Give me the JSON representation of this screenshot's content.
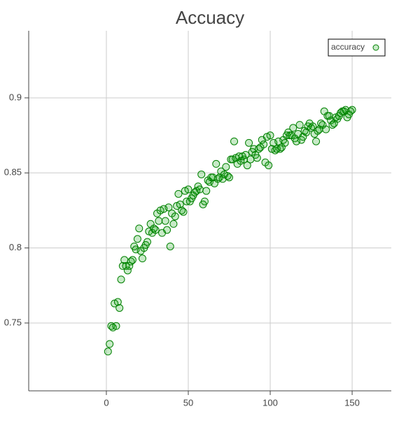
{
  "chart_data": {
    "type": "scatter",
    "title": "Accuacy",
    "x": [
      1,
      2,
      3,
      4,
      5,
      6,
      7,
      8,
      9,
      10,
      11,
      12,
      13,
      14,
      15,
      16,
      17,
      18,
      19,
      20,
      21,
      22,
      23,
      24,
      25,
      26,
      27,
      28,
      29,
      30,
      31,
      32,
      33,
      34,
      35,
      36,
      37,
      38,
      39,
      40,
      41,
      42,
      43,
      44,
      45,
      46,
      47,
      48,
      49,
      50,
      51,
      52,
      53,
      54,
      55,
      56,
      57,
      58,
      59,
      60,
      61,
      62,
      63,
      64,
      65,
      66,
      67,
      68,
      69,
      70,
      71,
      72,
      73,
      74,
      75,
      76,
      77,
      78,
      79,
      80,
      81,
      82,
      83,
      84,
      85,
      86,
      87,
      88,
      89,
      90,
      91,
      92,
      93,
      94,
      95,
      96,
      97,
      98,
      99,
      100,
      101,
      102,
      103,
      104,
      105,
      106,
      107,
      108,
      109,
      110,
      111,
      112,
      113,
      114,
      115,
      116,
      117,
      118,
      119,
      120,
      121,
      122,
      123,
      124,
      125,
      126,
      127,
      128,
      129,
      130,
      131,
      132,
      133,
      134,
      135,
      136,
      137,
      138,
      139,
      140,
      141,
      142,
      143,
      144,
      145,
      146,
      147,
      148,
      149,
      150
    ],
    "series": [
      {
        "name": "accuracy",
        "color": "#008000",
        "fill": "rgba(0,160,0,0.22)",
        "values": [
          0.731,
          0.736,
          0.748,
          0.747,
          0.763,
          0.748,
          0.764,
          0.76,
          0.779,
          0.788,
          0.792,
          0.788,
          0.785,
          0.788,
          0.791,
          0.792,
          0.801,
          0.799,
          0.806,
          0.813,
          0.798,
          0.793,
          0.8,
          0.802,
          0.804,
          0.811,
          0.816,
          0.81,
          0.813,
          0.812,
          0.823,
          0.818,
          0.825,
          0.81,
          0.826,
          0.818,
          0.812,
          0.827,
          0.801,
          0.823,
          0.816,
          0.821,
          0.828,
          0.836,
          0.829,
          0.825,
          0.824,
          0.838,
          0.831,
          0.839,
          0.831,
          0.833,
          0.835,
          0.837,
          0.838,
          0.841,
          0.839,
          0.849,
          0.829,
          0.831,
          0.838,
          0.845,
          0.844,
          0.847,
          0.847,
          0.843,
          0.856,
          0.846,
          0.847,
          0.851,
          0.846,
          0.849,
          0.854,
          0.848,
          0.847,
          0.859,
          0.859,
          0.871,
          0.86,
          0.856,
          0.861,
          0.858,
          0.861,
          0.859,
          0.862,
          0.855,
          0.87,
          0.859,
          0.864,
          0.866,
          0.862,
          0.86,
          0.866,
          0.867,
          0.872,
          0.869,
          0.857,
          0.874,
          0.855,
          0.875,
          0.866,
          0.87,
          0.865,
          0.866,
          0.871,
          0.866,
          0.867,
          0.872,
          0.87,
          0.875,
          0.877,
          0.875,
          0.875,
          0.88,
          0.873,
          0.871,
          0.876,
          0.882,
          0.872,
          0.874,
          0.878,
          0.877,
          0.881,
          0.883,
          0.88,
          0.881,
          0.876,
          0.871,
          0.878,
          0.879,
          0.883,
          0.882,
          0.891,
          0.879,
          0.888,
          0.888,
          0.885,
          0.882,
          0.883,
          0.887,
          0.886,
          0.888,
          0.89,
          0.891,
          0.891,
          0.892,
          0.887,
          0.889,
          0.891,
          0.892
        ]
      }
    ],
    "xlim": [
      -47.4,
      173.9
    ],
    "ylim": [
      0.7048,
      0.9447
    ],
    "xticks": [
      0,
      50,
      100,
      150
    ],
    "yticks": [
      0.75,
      0.8,
      0.85,
      0.9
    ],
    "grid": true,
    "legend": "top-right"
  }
}
